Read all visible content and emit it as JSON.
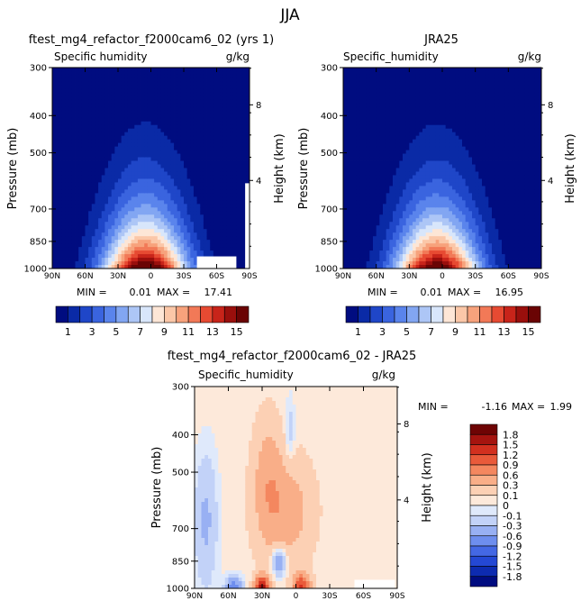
{
  "figure_title": "JJA",
  "colors": {
    "abs_levels": [
      "#000c80",
      "#0a2aa6",
      "#1f46c8",
      "#3a64df",
      "#5a84ec",
      "#82a6f2",
      "#adc6f6",
      "#d8e6fb",
      "#fde6d6",
      "#fbc7a8",
      "#f7a27c",
      "#f27957",
      "#e74a32",
      "#c8241a",
      "#9a0f0c",
      "#6a0404"
    ],
    "diff_levels": [
      "#000c80",
      "#0d2bb0",
      "#2448d4",
      "#4468e4",
      "#6e8eee",
      "#98b0f3",
      "#c2d2f8",
      "#dfe9fb",
      "#fde9da",
      "#fcd0b4",
      "#f9ae88",
      "#f4875f",
      "#e95a3a",
      "#d2301f",
      "#a5140f",
      "#6e0404"
    ]
  },
  "chart_data": [
    {
      "type": "heatmap",
      "subtitle": "ftest_mg4_refactor_f2000cam6_02 (yrs 1)",
      "field_label": "Specific humidity",
      "units": "g/kg",
      "ylabel": "Pressure (mb)",
      "ylabel_right": "Height (km)",
      "x_ticks": [
        "90N",
        "60N",
        "30N",
        "0",
        "30S",
        "60S",
        "90S"
      ],
      "y_ticks": [
        300,
        400,
        500,
        700,
        850,
        1000
      ],
      "right_ticks": [
        "8",
        "4"
      ],
      "min_label": "MIN =",
      "min": "0.01",
      "max_label": "MAX =",
      "max": "17.41",
      "ylim": [
        1000,
        300
      ],
      "xlim": [
        90,
        -90
      ],
      "peak": {
        "lat": 5,
        "pressure": 1000,
        "value": 17.41
      }
    },
    {
      "type": "heatmap",
      "subtitle": "JRA25",
      "field_label": "Specific_humidity",
      "units": "g/kg",
      "ylabel": "Pressure (mb)",
      "ylabel_right": "Height (km)",
      "x_ticks": [
        "90N",
        "60N",
        "30N",
        "0",
        "30S",
        "60S",
        "90S"
      ],
      "y_ticks": [
        300,
        400,
        500,
        700,
        850,
        1000
      ],
      "right_ticks": [
        "8",
        "4"
      ],
      "min_label": "MIN =",
      "min": "0.01",
      "max_label": "MAX =",
      "max": "16.95",
      "ylim": [
        1000,
        300
      ],
      "xlim": [
        90,
        -90
      ],
      "peak": {
        "lat": 5,
        "pressure": 1000,
        "value": 16.95
      }
    },
    {
      "type": "heatmap",
      "subtitle": "ftest_mg4_refactor_f2000cam6_02 - JRA25",
      "field_label": "Specific_humidity",
      "units": "g/kg",
      "ylabel": "Pressure (mb)",
      "ylabel_right": "Height (km)",
      "x_ticks": [
        "90N",
        "60N",
        "30N",
        "0",
        "30S",
        "60S",
        "90S"
      ],
      "y_ticks": [
        300,
        400,
        500,
        700,
        850,
        1000
      ],
      "right_ticks": [
        "8",
        "4"
      ],
      "min_label": "MIN =",
      "min": "-1.16",
      "max_label": "MAX =",
      "max": "1.99",
      "ylim": [
        1000,
        300
      ],
      "xlim": [
        90,
        -90
      ]
    }
  ],
  "abs_colorbar": {
    "labels": [
      "1",
      "3",
      "5",
      "7",
      "9",
      "11",
      "13",
      "15"
    ]
  },
  "diff_colorbar": {
    "labels": [
      "1.8",
      "1.5",
      "1.2",
      "0.9",
      "0.6",
      "0.3",
      "0.1",
      "0",
      "-0.1",
      "-0.3",
      "-0.6",
      "-0.9",
      "-1.2",
      "-1.5",
      "-1.8"
    ]
  }
}
